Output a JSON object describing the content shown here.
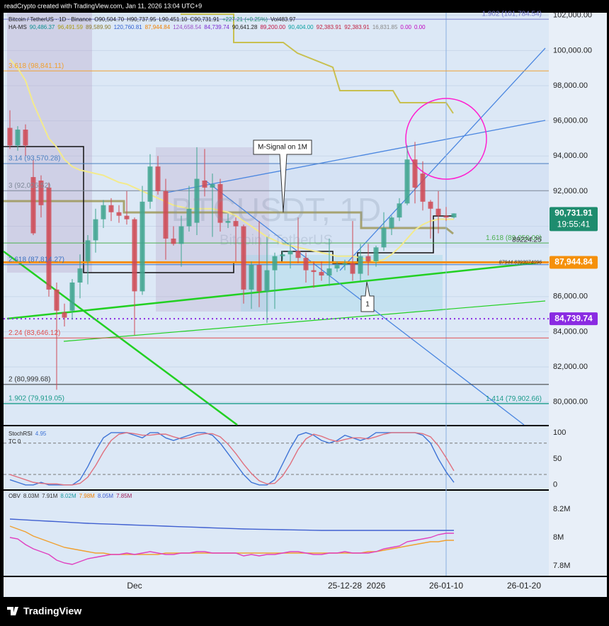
{
  "header": {
    "credit": "readCrypto created with TradingView.com, Jan 11, 2026 13:04 UTC+9"
  },
  "footer": {
    "logo": "TradingView"
  },
  "callouts": {
    "signal": "M-Signal on 1M",
    "wave": "1"
  },
  "chart_data": [
    {
      "type": "candlestick",
      "title": "Bitcoin / TetherUS · 1D · Binance",
      "legend_ohlc": [
        "O90,504.70",
        "H90,737.95",
        "L90,451.10",
        "C90,731.91",
        "+227.21 (+0.25%)",
        "Vol483.97"
      ],
      "indicator_name": "HA-MS",
      "indicator_values": [
        {
          "label": "90,486.37",
          "color": "#0b8f8f"
        },
        {
          "label": "96,491.59",
          "color": "#a89a10"
        },
        {
          "label": "89,589.90",
          "color": "#8a7a2a"
        },
        {
          "label": "120,760.81",
          "color": "#2f5fd0"
        },
        {
          "label": "87,944.84",
          "color": "#f08000"
        },
        {
          "label": "124,658.54",
          "color": "#9a50c8"
        },
        {
          "label": "84,739.74",
          "color": "#7a28d0"
        },
        {
          "label": "90,641.28",
          "color": "#222222"
        },
        {
          "label": "89,200.00",
          "color": "#c01040"
        },
        {
          "label": "90,404.00",
          "color": "#0aa0a0"
        },
        {
          "label": "92,383.91",
          "color": "#c02040"
        },
        {
          "label": "92,383.91",
          "color": "#c02040"
        },
        {
          "label": "16,831.85",
          "color": "#888888"
        },
        {
          "label": "0.00",
          "color": "#c000c0"
        },
        {
          "label": "0.00",
          "color": "#c000c0"
        }
      ],
      "watermark": "BTCUSDT, 1D",
      "watermark_sub": "Bitcoin / TetherUS",
      "categories": [
        null,
        null,
        null,
        null,
        null,
        null,
        null,
        null,
        null,
        null,
        null,
        null,
        null,
        null,
        null,
        null,
        "Dec",
        null,
        null,
        null,
        null,
        null,
        null,
        null,
        null,
        null,
        null,
        null,
        null,
        null,
        null,
        null,
        null,
        null,
        null,
        null,
        null,
        null,
        null,
        null,
        null,
        null,
        null,
        "25-12-28",
        null,
        null,
        null,
        "2026",
        null,
        null,
        null,
        null,
        null,
        null,
        null,
        null,
        "26-01-10",
        null,
        null,
        null,
        null,
        null,
        null,
        null,
        null,
        null,
        "26-01-20"
      ],
      "open": [
        95600,
        94600,
        95500,
        92800,
        92600,
        92200,
        86400,
        85100,
        85200,
        86800,
        88000,
        89200,
        90400,
        91200,
        90800,
        90600,
        90400,
        86300,
        91400,
        93400,
        92000,
        89300,
        89000,
        90000,
        90200,
        92600,
        92200,
        92400,
        90200,
        90300,
        90000,
        86400,
        87800,
        86300,
        87500,
        88300,
        88400,
        88600,
        88200,
        87500,
        87400,
        87200,
        87600,
        87800,
        87900,
        87300,
        88300,
        88000,
        88800,
        89900,
        90500,
        91300,
        93800,
        93000,
        91400,
        91000,
        90600,
        90504.7,
        null,
        null,
        null,
        null,
        null,
        null,
        null,
        null,
        null
      ],
      "high": [
        96600,
        95700,
        95800,
        93800,
        92900,
        92500,
        86800,
        85600,
        87000,
        88400,
        89500,
        91000,
        91500,
        91600,
        91200,
        92000,
        90500,
        92300,
        94100,
        94000,
        92700,
        90000,
        90600,
        92300,
        94500,
        94400,
        93000,
        92700,
        90700,
        90500,
        90100,
        88000,
        90300,
        89400,
        88500,
        88600,
        89000,
        90500,
        88500,
        88000,
        88000,
        89300,
        88000,
        88100,
        90300,
        89000,
        89000,
        88900,
        90800,
        90600,
        91600,
        94600,
        94800,
        93700,
        91500,
        92000,
        91100,
        90737.95,
        null,
        null,
        null,
        null,
        null,
        null,
        null,
        null,
        null
      ],
      "low": [
        94400,
        94300,
        94000,
        89500,
        90500,
        86000,
        80700,
        84300,
        84700,
        85900,
        86700,
        88500,
        89900,
        90300,
        90200,
        90100,
        83800,
        86100,
        91000,
        91800,
        88100,
        88900,
        87700,
        89700,
        89500,
        91700,
        89400,
        89700,
        89900,
        88000,
        85600,
        85300,
        85400,
        84500,
        85300,
        88100,
        87600,
        87900,
        86800,
        86500,
        86900,
        86600,
        87400,
        87500,
        86900,
        86900,
        87200,
        87700,
        88600,
        89500,
        90300,
        91200,
        91300,
        90900,
        89300,
        89600,
        90300,
        90451.1,
        null,
        null,
        null,
        null,
        null,
        null,
        null,
        null,
        null
      ],
      "close": [
        94600,
        95500,
        94600,
        89600,
        91200,
        86400,
        85200,
        84800,
        86800,
        87600,
        89200,
        90400,
        91200,
        90800,
        90600,
        90400,
        86300,
        91400,
        93400,
        92000,
        89300,
        89000,
        90000,
        91000,
        92700,
        92200,
        92400,
        90200,
        90300,
        90000,
        86400,
        87800,
        86300,
        87500,
        88300,
        88400,
        88600,
        88200,
        87500,
        87400,
        87200,
        87600,
        87800,
        87900,
        87300,
        88300,
        88000,
        88800,
        89900,
        90500,
        91300,
        93800,
        92200,
        91400,
        91000,
        90600,
        90500,
        90731.91,
        null,
        null,
        null,
        null,
        null,
        null,
        null,
        null,
        null
      ],
      "up_color": "#3fa58f",
      "down_color": "#cf4a55",
      "ma": {
        "color": "#f3ea8c",
        "values": [
          99500,
          99000,
          98300,
          97000,
          96000,
          95000,
          94500,
          93800,
          93400,
          93200,
          93100,
          93000,
          92900,
          92700,
          92500,
          92400,
          92200,
          92000,
          91800,
          91600,
          91400,
          91200,
          91100,
          91000,
          91000,
          91000,
          91000,
          90900,
          90800,
          90600,
          90300,
          90000,
          89700,
          89400,
          89200,
          89000,
          88900,
          88800,
          88700,
          88600,
          88500,
          88400,
          88300,
          88300,
          88300,
          88200,
          88100,
          88000,
          88100,
          88400,
          88800,
          89300,
          89800,
          90100,
          90300,
          90400,
          90400,
          90400,
          null,
          null,
          null,
          null,
          null,
          null,
          null,
          null,
          null
        ]
      },
      "ylim": [
        78700,
        102150
      ],
      "yticks": [
        {
          "value": 80000,
          "label": "80,000.00"
        },
        {
          "value": 82000,
          "label": "82,000.00"
        },
        {
          "value": 84000,
          "label": "84,000.00"
        },
        {
          "value": 86000,
          "label": "86,000.00"
        },
        {
          "value": 88000,
          "label": "88,000.00"
        },
        {
          "value": 90000,
          "label": "90,000.00"
        },
        {
          "value": 92000,
          "label": "92,000.00"
        },
        {
          "value": 94000,
          "label": "94,000.00"
        },
        {
          "value": 96000,
          "label": "96,000.00"
        },
        {
          "value": 98000,
          "label": "98,000.00"
        },
        {
          "value": 100000,
          "label": "100,000.00"
        },
        {
          "value": 102000,
          "label": "102,000.00"
        }
      ],
      "grid": true,
      "levels": [
        {
          "label": "1.902 (101,784.54)",
          "value": 101784.54,
          "color": "#7a7fd0",
          "side": "right"
        },
        {
          "label": "3.618 (98,841.11)",
          "value": 98841.11,
          "color": "#f0a030",
          "side": "left"
        },
        {
          "label": "3.14 (93,570.28)",
          "value": 93570.28,
          "color": "#4a7fc0",
          "side": "left"
        },
        {
          "label": "3 (92,026.52)",
          "value": 92026.52,
          "color": "#808a9a",
          "side": "left"
        },
        {
          "label": "1.618 (89,050.00)",
          "value": 89050,
          "color": "#4caf50",
          "side": "right"
        },
        {
          "label": "2.618 (87,814.27)",
          "value": 87814.27,
          "color": "#3a6fc0",
          "side": "left"
        },
        {
          "label": "2.24 (83,646.12)",
          "value": 83646.12,
          "color": "#e05050",
          "side": "left"
        },
        {
          "label": "2 (80,999.68)",
          "value": 80999.68,
          "color": "#333333",
          "side": "left"
        },
        {
          "label": "1.902 (79,919.05)",
          "value": 79919.05,
          "color": "#1a9a8a",
          "side": "left"
        },
        {
          "label": "1.414 (79,902.66)",
          "value": 79902.66,
          "color": "#1a9a8a",
          "side": "right"
        }
      ],
      "price_tags": [
        {
          "label": "90,731.91",
          "value": 90731.91,
          "color": "#1e8c6e",
          "sub": "19:55:41",
          "line_style": "none"
        },
        {
          "label": "87,944.84",
          "value": 87944.84,
          "color": "#f5900a",
          "line_style": "solid"
        },
        {
          "label": "84,739.74",
          "value": 84739.74,
          "color": "#8a2be2",
          "line_style": "dotted"
        }
      ],
      "price_notes": [
        89224.25,
        87944.8393074096
      ]
    },
    {
      "type": "line",
      "title": "StochRSI",
      "tc_label": "TC 0",
      "series": [
        {
          "color": "#3f74d6",
          "values": [
            10,
            5,
            0,
            0,
            5,
            0,
            0,
            0,
            0,
            10,
            35,
            65,
            90,
            100,
            100,
            100,
            95,
            90,
            100,
            100,
            90,
            85,
            90,
            95,
            100,
            100,
            95,
            80,
            60,
            40,
            20,
            5,
            0,
            0,
            10,
            40,
            70,
            95,
            100,
            95,
            85,
            80,
            85,
            95,
            90,
            85,
            90,
            100,
            100,
            100,
            100,
            100,
            100,
            95,
            80,
            50,
            25,
            4.95,
            null,
            null,
            null,
            null,
            null,
            null,
            null,
            null,
            null
          ]
        },
        {
          "color": "#e0707e",
          "values": [
            20,
            15,
            10,
            5,
            3,
            2,
            2,
            0,
            0,
            3,
            15,
            37,
            63,
            85,
            97,
            100,
            98,
            95,
            95,
            97,
            97,
            92,
            88,
            90,
            95,
            98,
            98,
            92,
            78,
            60,
            40,
            22,
            8,
            2,
            3,
            17,
            40,
            68,
            88,
            97,
            93,
            87,
            83,
            87,
            90,
            90,
            88,
            92,
            97,
            100,
            100,
            100,
            100,
            98,
            92,
            75,
            52,
            27,
            null,
            null,
            null,
            null,
            null,
            null,
            null,
            null,
            null
          ]
        }
      ],
      "ylim": [
        -7,
        108
      ],
      "yticks": [
        0,
        50,
        100
      ],
      "bands": [
        20,
        80
      ]
    },
    {
      "type": "line",
      "title": "OBV",
      "legend_values": [
        {
          "label": "8.03M",
          "color": "#333333"
        },
        {
          "label": "7.91M",
          "color": "#333333"
        },
        {
          "label": "8.02M",
          "color": "#1a9aa0"
        },
        {
          "label": "7.98M",
          "color": "#f08000"
        },
        {
          "label": "8.05M",
          "color": "#3f5fd0"
        },
        {
          "label": "7.85M",
          "color": "#a0205a"
        }
      ],
      "series": [
        {
          "color": "#3f5fd0",
          "values": [
            8130000,
            8127000,
            8124000,
            8121000,
            8118000,
            8115000,
            8112000,
            8109000,
            8106000,
            8103000,
            8100000,
            8098000,
            8096000,
            8094000,
            8092000,
            8090000,
            8088000,
            8086000,
            8084000,
            8082000,
            8080000,
            8078000,
            8076000,
            8074000,
            8072000,
            8070000,
            8068000,
            8066000,
            8064000,
            8062000,
            8060000,
            8059000,
            8058000,
            8057000,
            8056000,
            8055000,
            8054000,
            8053000,
            8052000,
            8051000,
            8050000,
            8050000,
            8050000,
            8050000,
            8050000,
            8050000,
            8050000,
            8050000,
            8050000,
            8050000,
            8050000,
            8050000,
            8050000,
            8050000,
            8050000,
            8050000,
            8050000,
            8050000,
            null,
            null,
            null,
            null,
            null,
            null,
            null,
            null,
            null
          ]
        },
        {
          "color": "#f0a030",
          "values": [
            8080000,
            8060000,
            8040000,
            8010000,
            7990000,
            7970000,
            7950000,
            7930000,
            7920000,
            7910000,
            7900000,
            7890000,
            7890000,
            7880000,
            7880000,
            7880000,
            7880000,
            7880000,
            7880000,
            7880000,
            7890000,
            7890000,
            7890000,
            7890000,
            7890000,
            7890000,
            7890000,
            7890000,
            7890000,
            7890000,
            7890000,
            7890000,
            7890000,
            7890000,
            7890000,
            7890000,
            7890000,
            7890000,
            7890000,
            7890000,
            7890000,
            7890000,
            7890000,
            7890000,
            7890000,
            7890000,
            7900000,
            7900000,
            7910000,
            7920000,
            7930000,
            7940000,
            7950000,
            7960000,
            7970000,
            7970000,
            7980000,
            7980000,
            null,
            null,
            null,
            null,
            null,
            null,
            null,
            null,
            null
          ]
        },
        {
          "color": "#e040c0",
          "values": [
            8000000,
            7990000,
            7950000,
            7920000,
            7900000,
            7880000,
            7840000,
            7820000,
            7810000,
            7830000,
            7850000,
            7860000,
            7870000,
            7880000,
            7880000,
            7890000,
            7880000,
            7890000,
            7900000,
            7890000,
            7880000,
            7880000,
            7890000,
            7890000,
            7900000,
            7900000,
            7890000,
            7890000,
            7890000,
            7890000,
            7870000,
            7880000,
            7870000,
            7880000,
            7880000,
            7890000,
            7900000,
            7900000,
            7890000,
            7880000,
            7880000,
            7890000,
            7890000,
            7900000,
            7890000,
            7890000,
            7890000,
            7900000,
            7920000,
            7930000,
            7940000,
            7970000,
            7980000,
            7990000,
            8000000,
            8020000,
            8030000,
            8030000,
            null,
            null,
            null,
            null,
            null,
            null,
            null,
            null,
            null
          ]
        }
      ],
      "ylim": [
        7735000,
        8330000
      ],
      "yticks": [
        {
          "value": 7800000,
          "label": "7.8M"
        },
        {
          "value": 8000000,
          "label": "8M"
        },
        {
          "value": 8200000,
          "label": "8.2M"
        }
      ]
    }
  ]
}
